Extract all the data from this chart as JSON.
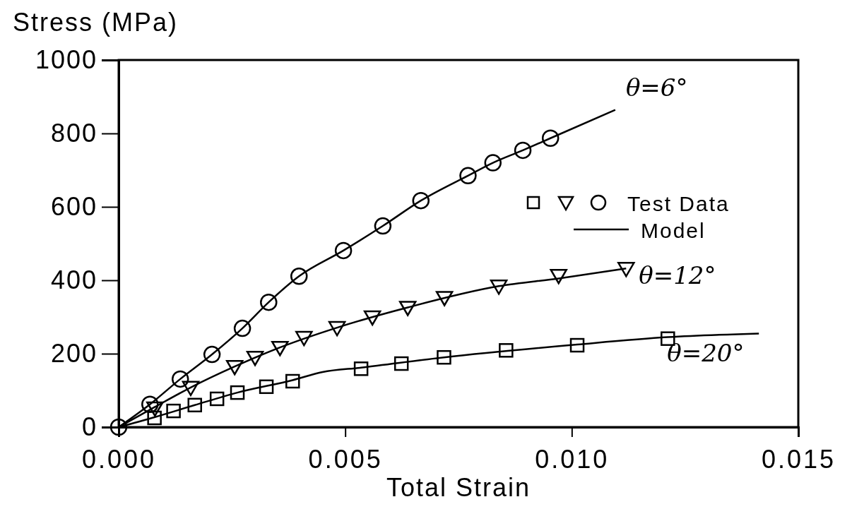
{
  "chart_data": {
    "type": "scatter",
    "ylabel": "Stress (MPa)",
    "xlabel": "Total Strain",
    "xlim": [
      0,
      0.015
    ],
    "ylim": [
      0,
      1000
    ],
    "xticks": [
      {
        "value": 0,
        "label": "0.000"
      },
      {
        "value": 0.005,
        "label": "0.005"
      },
      {
        "value": 0.01,
        "label": "0.010"
      },
      {
        "value": 0.015,
        "label": "0.015"
      }
    ],
    "yticks": [
      0,
      200,
      400,
      600,
      800,
      1000
    ],
    "grid": false,
    "legend": "right",
    "annotations": [
      "Test Data",
      "Model"
    ],
    "series": [
      {
        "marker": "square",
        "color": "#000000",
        "x": [
          0.00079,
          0.00121,
          0.00168,
          0.00217,
          0.00262,
          0.00326,
          0.00384,
          0.00535,
          0.00624,
          0.00718,
          0.00855,
          0.01012,
          0.01212
        ],
        "values": [
          25,
          44,
          60,
          77,
          94,
          110,
          125,
          159,
          173,
          190,
          209,
          223,
          241
        ]
      },
      {
        "marker": "triangle",
        "color": "#000000",
        "x": [
          0.0008,
          0.00159,
          0.00256,
          0.00301,
          0.00356,
          0.00409,
          0.00482,
          0.0056,
          0.00638,
          0.00719,
          0.00839,
          0.00971,
          0.0112
        ],
        "values": [
          52,
          108,
          165,
          190,
          217,
          244,
          271,
          300,
          326,
          353,
          384,
          413,
          432
        ]
      },
      {
        "marker": "circle",
        "color": "#000000",
        "x": [
          0,
          0.00069,
          0.00136,
          0.00206,
          0.00273,
          0.00331,
          0.00398,
          0.00496,
          0.00583,
          0.00667,
          0.00771,
          0.00826,
          0.00892,
          0.00953
        ],
        "values": [
          0,
          62,
          131,
          198,
          269,
          340,
          411,
          481,
          548,
          617,
          685,
          720,
          754,
          787
        ]
      },
      {
        "type": "line",
        "name": "θ=20°",
        "marker": "none",
        "line_style": "solid",
        "color": "#000000",
        "x": [
          0,
          0.00079,
          0.00168,
          0.00262,
          0.00384,
          0.0045,
          0.00535,
          0.00718,
          0.01012,
          0.01212,
          0.01413
        ],
        "values": [
          0,
          27,
          60,
          94,
          128,
          150,
          162,
          190,
          225,
          245,
          255
        ]
      },
      {
        "type": "line",
        "name": "θ=12°",
        "marker": "none",
        "line_style": "solid",
        "color": "#000000",
        "x": [
          0,
          0.0008,
          0.00159,
          0.00256,
          0.00356,
          0.00482,
          0.00638,
          0.00839,
          0.00971,
          0.0112
        ],
        "values": [
          0,
          55,
          108,
          165,
          217,
          271,
          326,
          384,
          405,
          432
        ]
      },
      {
        "type": "line",
        "name": "θ=6°",
        "marker": "none",
        "line_style": "solid",
        "color": "#000000",
        "x": [
          0,
          0.00069,
          0.00136,
          0.00206,
          0.00273,
          0.00331,
          0.00398,
          0.00496,
          0.00583,
          0.00667,
          0.00771,
          0.00826,
          0.00892,
          0.00953,
          0.01096
        ],
        "values": [
          0,
          62,
          131,
          198,
          269,
          340,
          411,
          481,
          548,
          617,
          685,
          720,
          754,
          787,
          864
        ]
      }
    ]
  }
}
